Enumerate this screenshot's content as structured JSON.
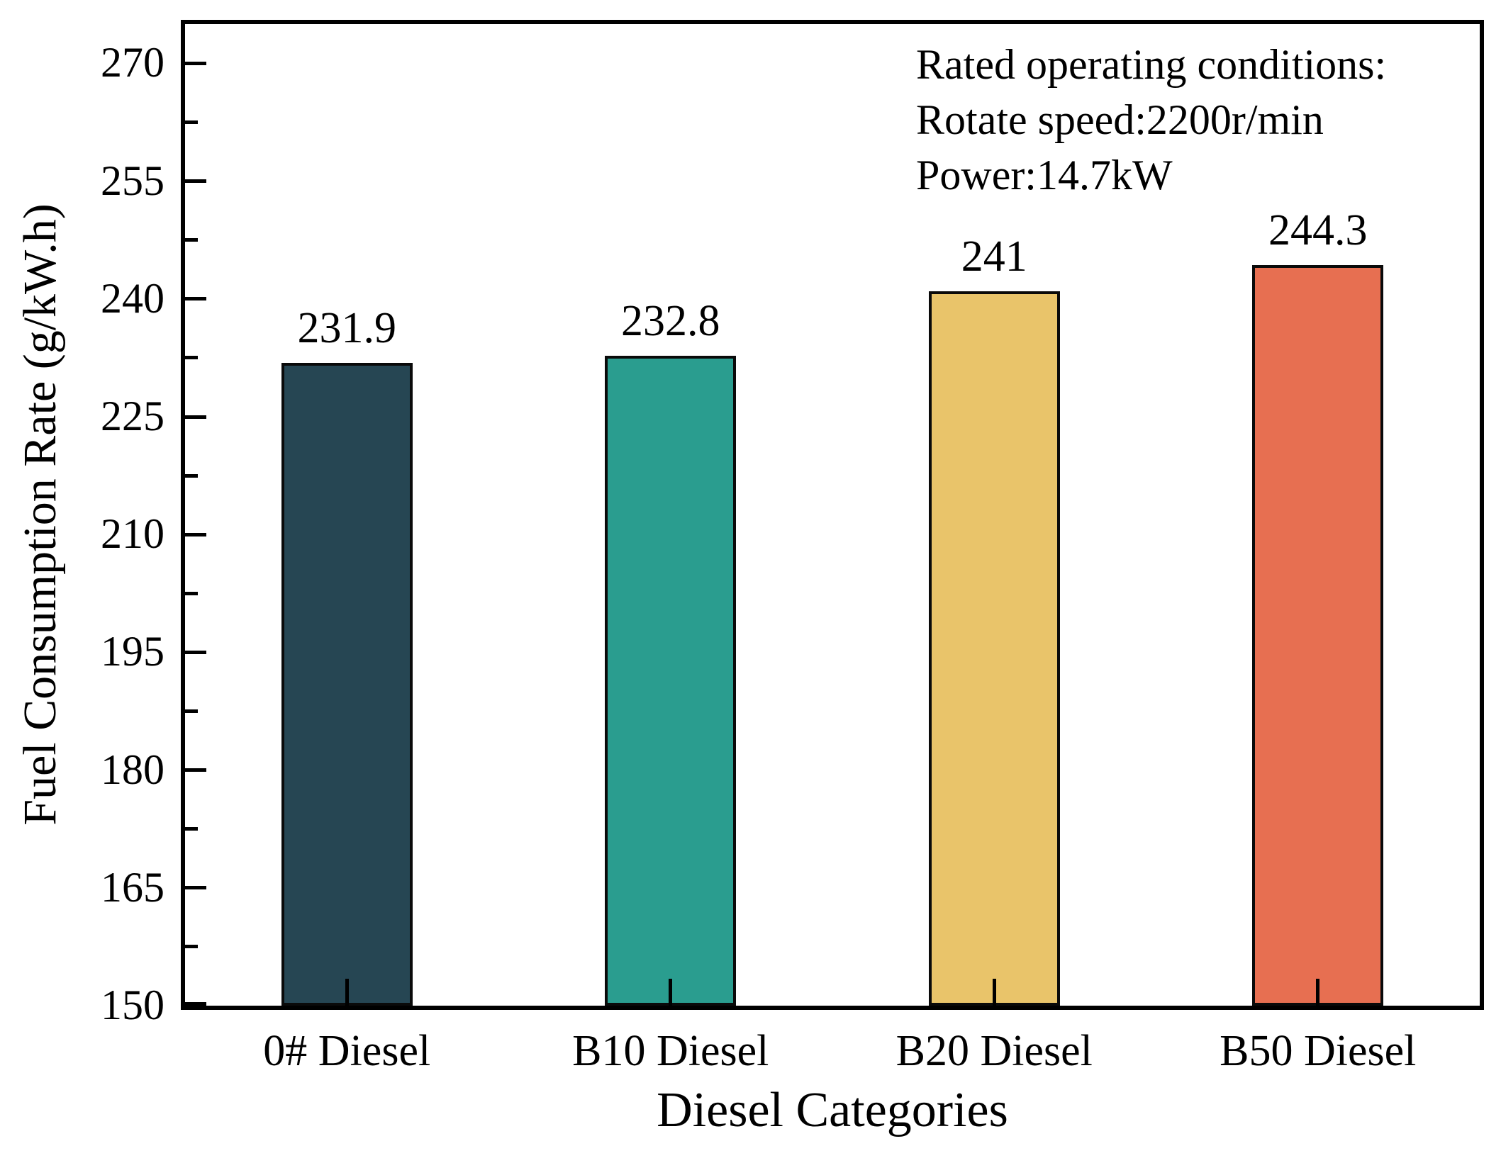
{
  "chart_data": {
    "type": "bar",
    "title": "",
    "categories": [
      "0# Diesel",
      "B10 Diesel",
      "B20 Diesel",
      "B50 Diesel"
    ],
    "values": [
      231.9,
      232.8,
      241,
      244.3
    ],
    "value_labels": [
      "231.9",
      "232.8",
      "241",
      "244.3"
    ],
    "bar_colors": [
      "#264653",
      "#2A9D8F",
      "#E9C46A",
      "#E76F51"
    ],
    "bar_edge_color": "#0a0a0a",
    "xlabel": "Diesel Categories",
    "ylabel": "Fuel Consumption Rate (g/kW.h)",
    "ylim": [
      150,
      275
    ],
    "yticks": [
      150,
      165,
      180,
      195,
      210,
      225,
      240,
      255,
      270
    ],
    "minor_ytick_step": 7.5,
    "grid": false,
    "legend": "none",
    "axis_color": "#000000",
    "background": "#ffffff",
    "annotation": {
      "lines": [
        "Rated operating conditions:",
        "Rotate speed:2200r/min",
        "Power:14.7kW"
      ]
    }
  }
}
